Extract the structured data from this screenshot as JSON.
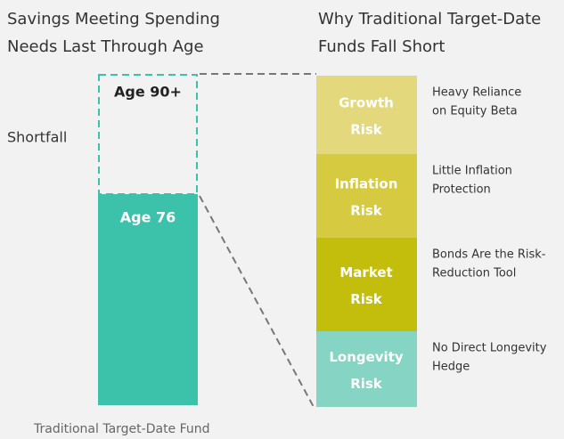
{
  "left": {
    "title_lines": [
      "Savings Meeting Spending",
      "Needs Last Through Age"
    ],
    "top_label": "Age 90+",
    "bottom_label": "Age 76",
    "side_label": "Shortfall",
    "caption": "Traditional Target-Date Fund"
  },
  "right": {
    "title_lines": [
      "Why Traditional Target-Date",
      "Funds Fall Short"
    ],
    "risks": [
      {
        "name_lines": [
          "Growth",
          "Risk"
        ],
        "desc_lines": [
          "Heavy Reliance",
          "on Equity Beta"
        ]
      },
      {
        "name_lines": [
          "Inflation",
          "Risk"
        ],
        "desc_lines": [
          "Little Inflation",
          "Protection"
        ]
      },
      {
        "name_lines": [
          "Market",
          "Risk"
        ],
        "desc_lines": [
          "Bonds Are the Risk-",
          "Reduction Tool"
        ]
      },
      {
        "name_lines": [
          "Longevity",
          "Risk"
        ],
        "desc_lines": [
          "No Direct Longevity",
          "Hedge"
        ]
      }
    ]
  }
}
